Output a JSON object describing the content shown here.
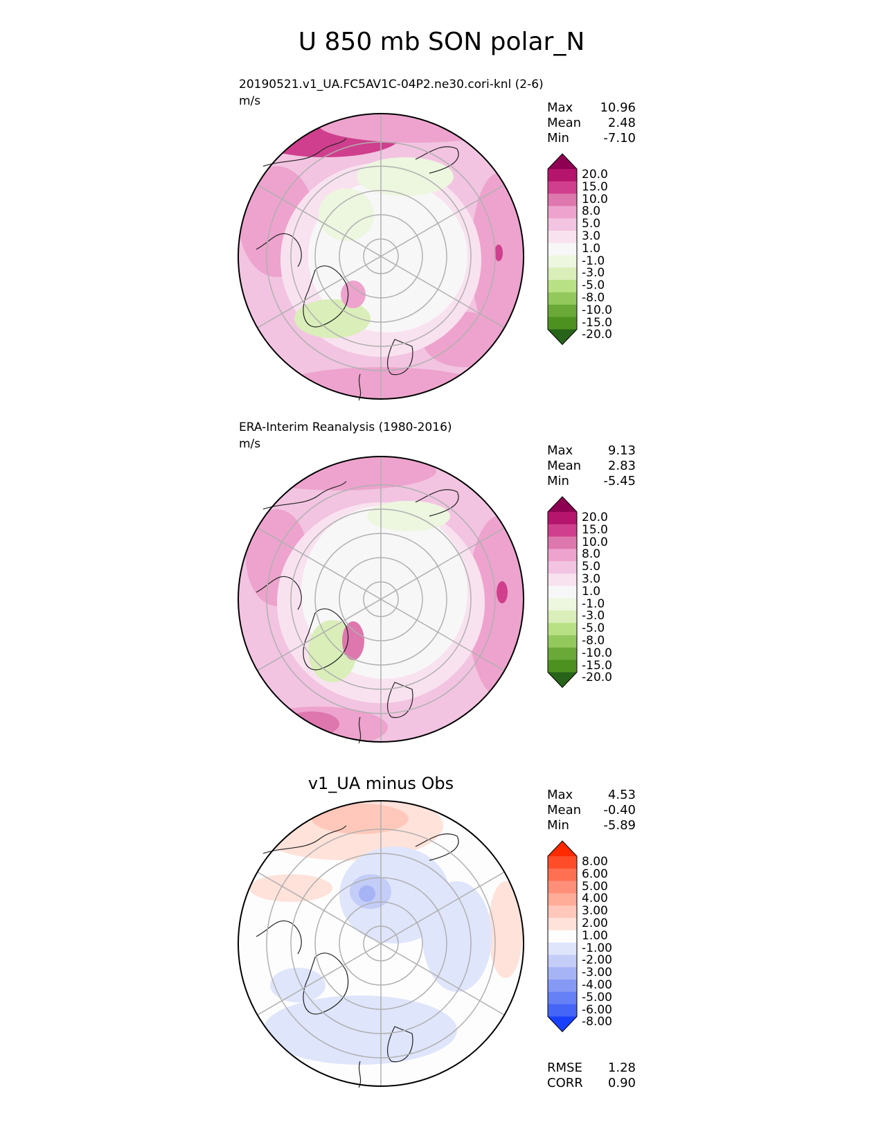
{
  "figure_title": "U 850 mb SON polar_N",
  "panels": [
    {
      "title": "20190521.v1_UA.FC5AV1C-04P2.ne30.cori-knl (2-6)",
      "units": "m/s",
      "stats": {
        "max_label": "Max",
        "max": "10.96",
        "mean_label": "Mean",
        "mean": "2.48",
        "min_label": "Min",
        "min": "-7.10"
      },
      "colorbar": {
        "levels": [
          "20.0",
          "15.0",
          "10.0",
          "8.0",
          "5.0",
          "3.0",
          "1.0",
          "-1.0",
          "-3.0",
          "-5.0",
          "-8.0",
          "-10.0",
          "-15.0",
          "-20.0"
        ],
        "colors": [
          "#8e0152",
          "#b5156d",
          "#cf3f8d",
          "#de77ae",
          "#eda3cd",
          "#f2c4e1",
          "#f9e2ef",
          "#f7f7f7",
          "#edf6df",
          "#d9eeb8",
          "#b8e186",
          "#93c85d",
          "#6aa838",
          "#4d9221",
          "#276419"
        ]
      }
    },
    {
      "title": "ERA-Interim Reanalysis (1980-2016)",
      "units": "m/s",
      "stats": {
        "max_label": "Max",
        "max": "9.13",
        "mean_label": "Mean",
        "mean": "2.83",
        "min_label": "Min",
        "min": "-5.45"
      },
      "colorbar": {
        "levels": [
          "20.0",
          "15.0",
          "10.0",
          "8.0",
          "5.0",
          "3.0",
          "1.0",
          "-1.0",
          "-3.0",
          "-5.0",
          "-8.0",
          "-10.0",
          "-15.0",
          "-20.0"
        ],
        "colors": [
          "#8e0152",
          "#b5156d",
          "#cf3f8d",
          "#de77ae",
          "#eda3cd",
          "#f2c4e1",
          "#f9e2ef",
          "#f7f7f7",
          "#edf6df",
          "#d9eeb8",
          "#b8e186",
          "#93c85d",
          "#6aa838",
          "#4d9221",
          "#276419"
        ]
      }
    },
    {
      "title": "v1_UA minus Obs",
      "stats": {
        "max_label": "Max",
        "max": "4.53",
        "mean_label": "Mean",
        "mean": "-0.40",
        "min_label": "Min",
        "min": "-5.89"
      },
      "metrics": {
        "rmse_label": "RMSE",
        "rmse": "1.28",
        "corr_label": "CORR",
        "corr": "0.90"
      },
      "colorbar": {
        "levels": [
          "8.00",
          "6.00",
          "5.00",
          "4.00",
          "3.00",
          "2.00",
          "1.00",
          "-1.00",
          "-2.00",
          "-3.00",
          "-4.00",
          "-5.00",
          "-6.00",
          "-8.00"
        ],
        "colors": [
          "#ff2a00",
          "#ff4d2a",
          "#ff6f52",
          "#ff8f78",
          "#ffac99",
          "#ffc8ba",
          "#ffe2da",
          "#fdfdfd",
          "#dfe5fb",
          "#c3cdf8",
          "#a6b4f6",
          "#8699f5",
          "#6680f5",
          "#4565f7",
          "#1a40ff"
        ]
      }
    }
  ]
}
